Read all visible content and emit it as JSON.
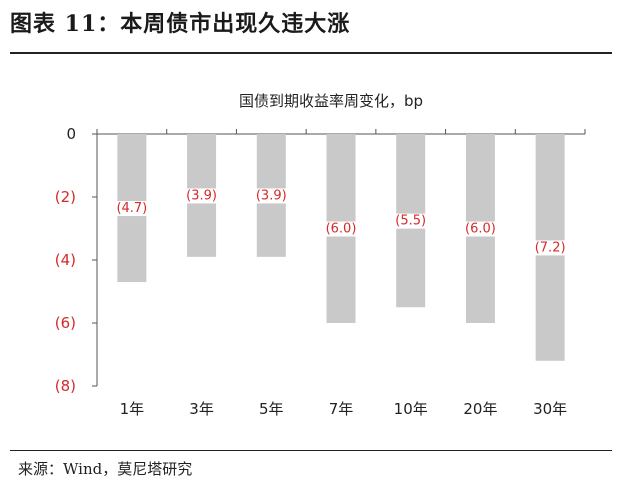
{
  "figure": {
    "title": "图表 11：本周债市出现久违大涨",
    "source": "来源：Wind，莫尼塔研究"
  },
  "colors": {
    "bar": "#c9c9c9",
    "axis": "#555555",
    "negative_text": "#d42a2a",
    "zero_text": "#222222",
    "label_bg": "#ffffff"
  },
  "chart_data": {
    "type": "bar",
    "title": "国债到期收益率周变化，bp",
    "xlabel": "",
    "ylabel": "",
    "categories": [
      "1年",
      "3年",
      "5年",
      "7年",
      "10年",
      "20年",
      "30年"
    ],
    "values": [
      -4.7,
      -3.9,
      -3.9,
      -6.0,
      -5.5,
      -6.0,
      -7.2
    ],
    "data_labels": [
      "(4.7)",
      "(3.9)",
      "(3.9)",
      "(6.0)",
      "(5.5)",
      "(6.0)",
      "(7.2)"
    ],
    "ylim": [
      -8,
      0
    ],
    "yticks": [
      0,
      -2,
      -4,
      -6,
      -8
    ],
    "ytick_labels": [
      "0",
      "(2)",
      "(4)",
      "(6)",
      "(8)"
    ],
    "grid": false,
    "legend": "none"
  }
}
